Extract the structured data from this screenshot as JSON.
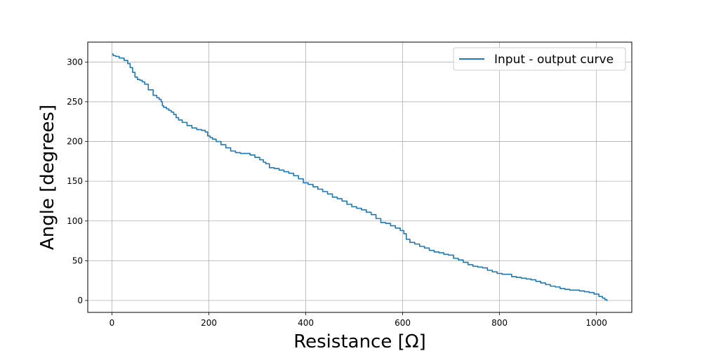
{
  "chart_data": {
    "type": "line",
    "title": "",
    "xlabel": "Resistance [Ω]",
    "ylabel": "Angle [degrees]",
    "xlim": [
      -50,
      1073
    ],
    "ylim": [
      -15,
      325
    ],
    "xticks": [
      0,
      200,
      400,
      600,
      800,
      1000
    ],
    "yticks": [
      0,
      50,
      100,
      150,
      200,
      250,
      300
    ],
    "grid": true,
    "legend_position": "top-right",
    "series": [
      {
        "name": "Input - output curve",
        "color": "#1f77b4",
        "x": [
          0,
          5,
          10,
          20,
          30,
          35,
          40,
          45,
          50,
          55,
          60,
          65,
          70,
          80,
          90,
          95,
          100,
          103,
          105,
          108,
          110,
          115,
          120,
          125,
          130,
          135,
          140,
          150,
          160,
          170,
          180,
          190,
          195,
          200,
          205,
          210,
          220,
          230,
          240,
          250,
          260,
          270,
          280,
          290,
          300,
          310,
          315,
          320,
          330,
          340,
          350,
          360,
          370,
          380,
          390,
          400,
          410,
          420,
          430,
          440,
          450,
          460,
          470,
          480,
          490,
          500,
          510,
          520,
          530,
          540,
          550,
          560,
          570,
          580,
          590,
          600,
          605,
          610,
          620,
          630,
          640,
          650,
          660,
          670,
          680,
          690,
          700,
          710,
          720,
          730,
          740,
          750,
          760,
          770,
          780,
          790,
          800,
          810,
          820,
          830,
          840,
          850,
          860,
          870,
          880,
          890,
          900,
          910,
          920,
          930,
          940,
          950,
          960,
          970,
          980,
          990,
          1000,
          1010,
          1015,
          1020,
          1023
        ],
        "y": [
          310,
          308,
          307,
          305,
          302,
          298,
          293,
          287,
          281,
          278,
          277,
          275,
          272,
          265,
          258,
          255,
          253,
          250,
          245,
          243,
          243,
          241,
          239,
          237,
          234,
          230,
          227,
          224,
          220,
          217,
          215,
          214,
          212,
          207,
          205,
          203,
          200,
          196,
          192,
          188,
          186,
          185,
          185,
          183,
          180,
          177,
          174,
          172,
          167,
          166,
          164,
          162,
          160,
          157,
          153,
          148,
          146,
          143,
          140,
          137,
          134,
          130,
          128,
          125,
          121,
          118,
          116,
          114,
          111,
          108,
          103,
          98,
          97,
          94,
          91,
          88,
          84,
          77,
          73,
          71,
          68,
          66,
          63,
          61,
          60,
          58,
          57,
          53,
          51,
          48,
          45,
          43,
          42,
          41,
          38,
          36,
          34,
          33,
          33,
          30,
          29,
          28,
          27,
          26,
          24,
          22,
          20,
          18,
          17,
          15,
          14,
          13,
          13,
          12,
          11,
          10,
          8,
          5,
          3,
          1,
          0
        ]
      }
    ]
  }
}
